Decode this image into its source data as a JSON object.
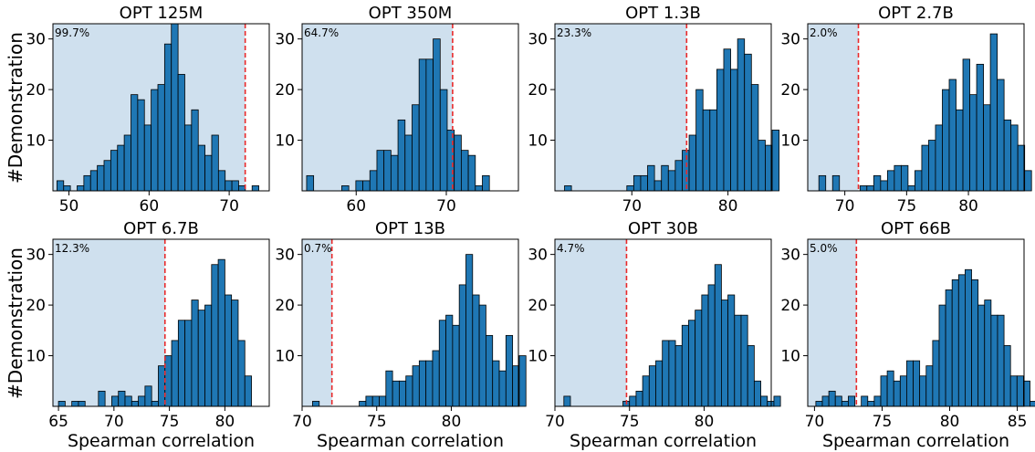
{
  "figure": {
    "ylabel": "#Demonstration",
    "xlabel": "Spearman correlation"
  },
  "colors": {
    "bar_fill": "#1f77b4",
    "bar_edge": "#000000",
    "shade": "#cfe0ee",
    "threshold_line": "#e8292a"
  },
  "chart_data": [
    {
      "type": "bar",
      "title": "OPT 125M",
      "annotation": "99.7%",
      "xlim": [
        48,
        75
      ],
      "ylim": [
        0,
        33
      ],
      "xticks": [
        50,
        60,
        70
      ],
      "yticks": [
        10,
        20,
        30
      ],
      "threshold": 72,
      "bin_start": 48.5,
      "bin_width": 0.84,
      "values": [
        2,
        1,
        0,
        1,
        3,
        4,
        5,
        6,
        8,
        9,
        11,
        19,
        18,
        13,
        20,
        21,
        29,
        33,
        23,
        13,
        16,
        9,
        7,
        11,
        4,
        2,
        2,
        1,
        0,
        1
      ]
    },
    {
      "type": "bar",
      "title": "OPT 350M",
      "annotation": "64.7%",
      "xlim": [
        54,
        78
      ],
      "ylim": [
        0,
        33
      ],
      "xticks": [
        60,
        70
      ],
      "yticks": [
        10,
        20,
        30
      ],
      "threshold": 70.7,
      "bin_start": 54.5,
      "bin_width": 0.78,
      "values": [
        3,
        0,
        0,
        0,
        0,
        1,
        0,
        2,
        2,
        4,
        8,
        8,
        7,
        14,
        11,
        17,
        26,
        26,
        30,
        20,
        12,
        11,
        8,
        7,
        1,
        3
      ]
    },
    {
      "type": "bar",
      "title": "OPT 1.3B",
      "annotation": "23.3%",
      "xlim": [
        62,
        84.5
      ],
      "ylim": [
        0,
        33
      ],
      "xticks": [
        70,
        80
      ],
      "yticks": [
        10,
        20,
        30
      ],
      "threshold": 75.7,
      "bin_start": 63,
      "bin_width": 0.72,
      "values": [
        1,
        0,
        0,
        0,
        0,
        0,
        0,
        0,
        0,
        1,
        3,
        3,
        5,
        2,
        5,
        4,
        6,
        8,
        11,
        20,
        16,
        16,
        24,
        28,
        24,
        30,
        27,
        21,
        10,
        9,
        12
      ]
    },
    {
      "type": "bar",
      "title": "OPT 2.7B",
      "annotation": "2.0%",
      "xlim": [
        67,
        84.5
      ],
      "ylim": [
        0,
        33
      ],
      "xticks": [
        70,
        75,
        80
      ],
      "yticks": [
        10,
        20,
        30
      ],
      "threshold": 71.1,
      "bin_start": 67.9,
      "bin_width": 0.555,
      "values": [
        3,
        0,
        3,
        0,
        0,
        0,
        1,
        1,
        3,
        2,
        4,
        5,
        5,
        1,
        4,
        9,
        10,
        13,
        20,
        22,
        16,
        26,
        19,
        25,
        17,
        31,
        22,
        14,
        13,
        9,
        4
      ]
    },
    {
      "type": "bar",
      "title": "OPT 6.7B",
      "annotation": "12.3%",
      "xlim": [
        64.5,
        84
      ],
      "ylim": [
        0,
        33
      ],
      "xticks": [
        65,
        70,
        75,
        80
      ],
      "yticks": [
        10,
        20,
        30
      ],
      "threshold": 74.6,
      "bin_start": 65,
      "bin_width": 0.6,
      "values": [
        1,
        0,
        1,
        1,
        0,
        0,
        3,
        0,
        2,
        3,
        2,
        1,
        2,
        4,
        1,
        8,
        10,
        13,
        17,
        17,
        21,
        19,
        20,
        28,
        29,
        22,
        21,
        13,
        6
      ]
    },
    {
      "type": "bar",
      "title": "OPT 13B",
      "annotation": "0.7%",
      "xlim": [
        70,
        84.5
      ],
      "ylim": [
        0,
        33
      ],
      "xticks": [
        70,
        75,
        80
      ],
      "yticks": [
        10,
        20,
        30
      ],
      "threshold": 72,
      "bin_start": 70.7,
      "bin_width": 0.447,
      "values": [
        1,
        0,
        0,
        0,
        0,
        0,
        0,
        1,
        2,
        2,
        2,
        7,
        5,
        5,
        6,
        8,
        9,
        9,
        11,
        17,
        18,
        16,
        24,
        30,
        22,
        20,
        14,
        9,
        7,
        14,
        8,
        10
      ]
    },
    {
      "type": "bar",
      "title": "OPT 30B",
      "annotation": "4.7%",
      "xlim": [
        70,
        84.5
      ],
      "ylim": [
        0,
        33
      ],
      "xticks": [
        70,
        75,
        80
      ],
      "yticks": [
        10,
        20,
        30
      ],
      "threshold": 74.8,
      "bin_start": 70.6,
      "bin_width": 0.44,
      "values": [
        2,
        0,
        0,
        0,
        0,
        0,
        0,
        0,
        0,
        1,
        2,
        3,
        6,
        8,
        9,
        13,
        13,
        12,
        16,
        17,
        19,
        22,
        24,
        28,
        21,
        22,
        18,
        18,
        12,
        5,
        2,
        1,
        2
      ]
    },
    {
      "type": "bar",
      "title": "OPT 66B",
      "annotation": "5.0%",
      "xlim": [
        69.5,
        85.5
      ],
      "ylim": [
        0,
        33
      ],
      "xticks": [
        70,
        75,
        80,
        85
      ],
      "yticks": [
        10,
        20,
        30
      ],
      "threshold": 73.1,
      "bin_start": 70.1,
      "bin_width": 0.48,
      "values": [
        1,
        2,
        3,
        2,
        1,
        2,
        0,
        2,
        1,
        2,
        6,
        7,
        5,
        6,
        9,
        9,
        6,
        8,
        13,
        20,
        23,
        25,
        26,
        27,
        25,
        20,
        21,
        18,
        18,
        12,
        6,
        6,
        5,
        1,
        2
      ]
    }
  ]
}
